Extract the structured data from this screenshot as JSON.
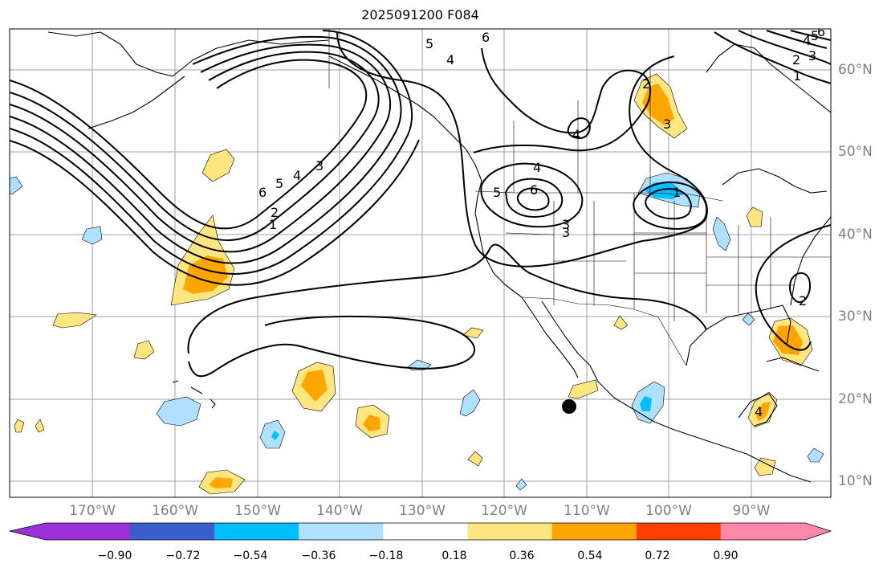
{
  "title": "2025091200 F084",
  "lon_labels": [
    "170°W",
    "160°W",
    "150°W",
    "140°W",
    "130°W",
    "120°W",
    "110°W",
    "100°W",
    "90°W"
  ],
  "lat_labels": [
    "60°N",
    "50°N",
    "40°N",
    "30°N",
    "20°N",
    "10°N"
  ],
  "colorbar": {
    "ticks": [
      "−0.90",
      "−0.72",
      "−0.54",
      "−0.36",
      "−0.18",
      "0.18",
      "0.36",
      "0.54",
      "0.72",
      "0.90"
    ],
    "colors": [
      "#9b30d9",
      "#00008b",
      "#3a5fcd",
      "#00bfff",
      "#b0e0ff",
      "#ffffff",
      "#ffe680",
      "#ffa500",
      "#ff4000",
      "#b22222",
      "#ff88aa"
    ]
  },
  "colors": {
    "light_yellow": "#ffe680",
    "orange": "#ffa500",
    "light_blue": "#b0e0ff",
    "blue": "#00bfff",
    "grid": "#a0a0a0",
    "coast": "#000000"
  },
  "contour_labels": [
    "1",
    "2",
    "3",
    "4",
    "5",
    "6",
    "1",
    "2",
    "3",
    "4",
    "5",
    "6",
    "4",
    "5",
    "6",
    "3",
    "4",
    "5",
    "6",
    "4",
    "1",
    "2",
    "3",
    "2",
    "4",
    "3"
  ]
}
